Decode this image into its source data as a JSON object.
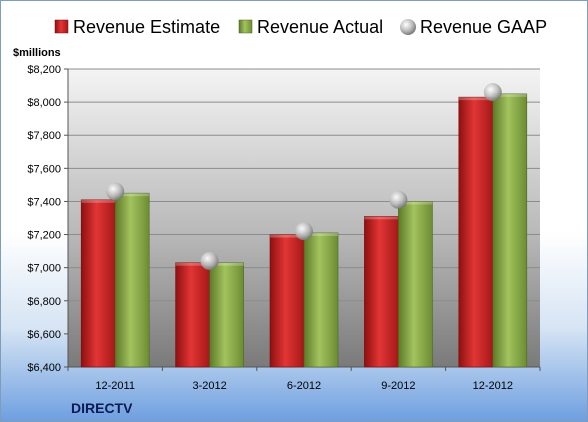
{
  "chart_data": {
    "type": "bar",
    "ylabel": "$millions",
    "categories": [
      "12-2011",
      "3-2012",
      "6-2012",
      "9-2012",
      "12-2012"
    ],
    "series": [
      {
        "name": "Revenue Estimate",
        "kind": "bar",
        "color": "#d42b2b",
        "values": [
          7410,
          7030,
          7200,
          7310,
          8030
        ]
      },
      {
        "name": "Revenue Actual",
        "kind": "bar",
        "color": "#8aab4a",
        "values": [
          7450,
          7030,
          7210,
          7400,
          8050
        ]
      },
      {
        "name": "Revenue GAAP",
        "kind": "marker",
        "color": "#b8b8b8",
        "values": [
          7460,
          7040,
          7220,
          7410,
          8060
        ]
      }
    ],
    "ylim": [
      6400,
      8200
    ],
    "yticks": [
      6400,
      6600,
      6800,
      7000,
      7200,
      7400,
      7600,
      7800,
      8000,
      8200
    ],
    "ytick_labels": [
      "$6,400",
      "$6,600",
      "$6,800",
      "$7,000",
      "$7,200",
      "$7,400",
      "$7,600",
      "$7,800",
      "$8,000",
      "$8,200"
    ],
    "legend_position": "top",
    "grid": true
  },
  "company": "DIRECTV"
}
